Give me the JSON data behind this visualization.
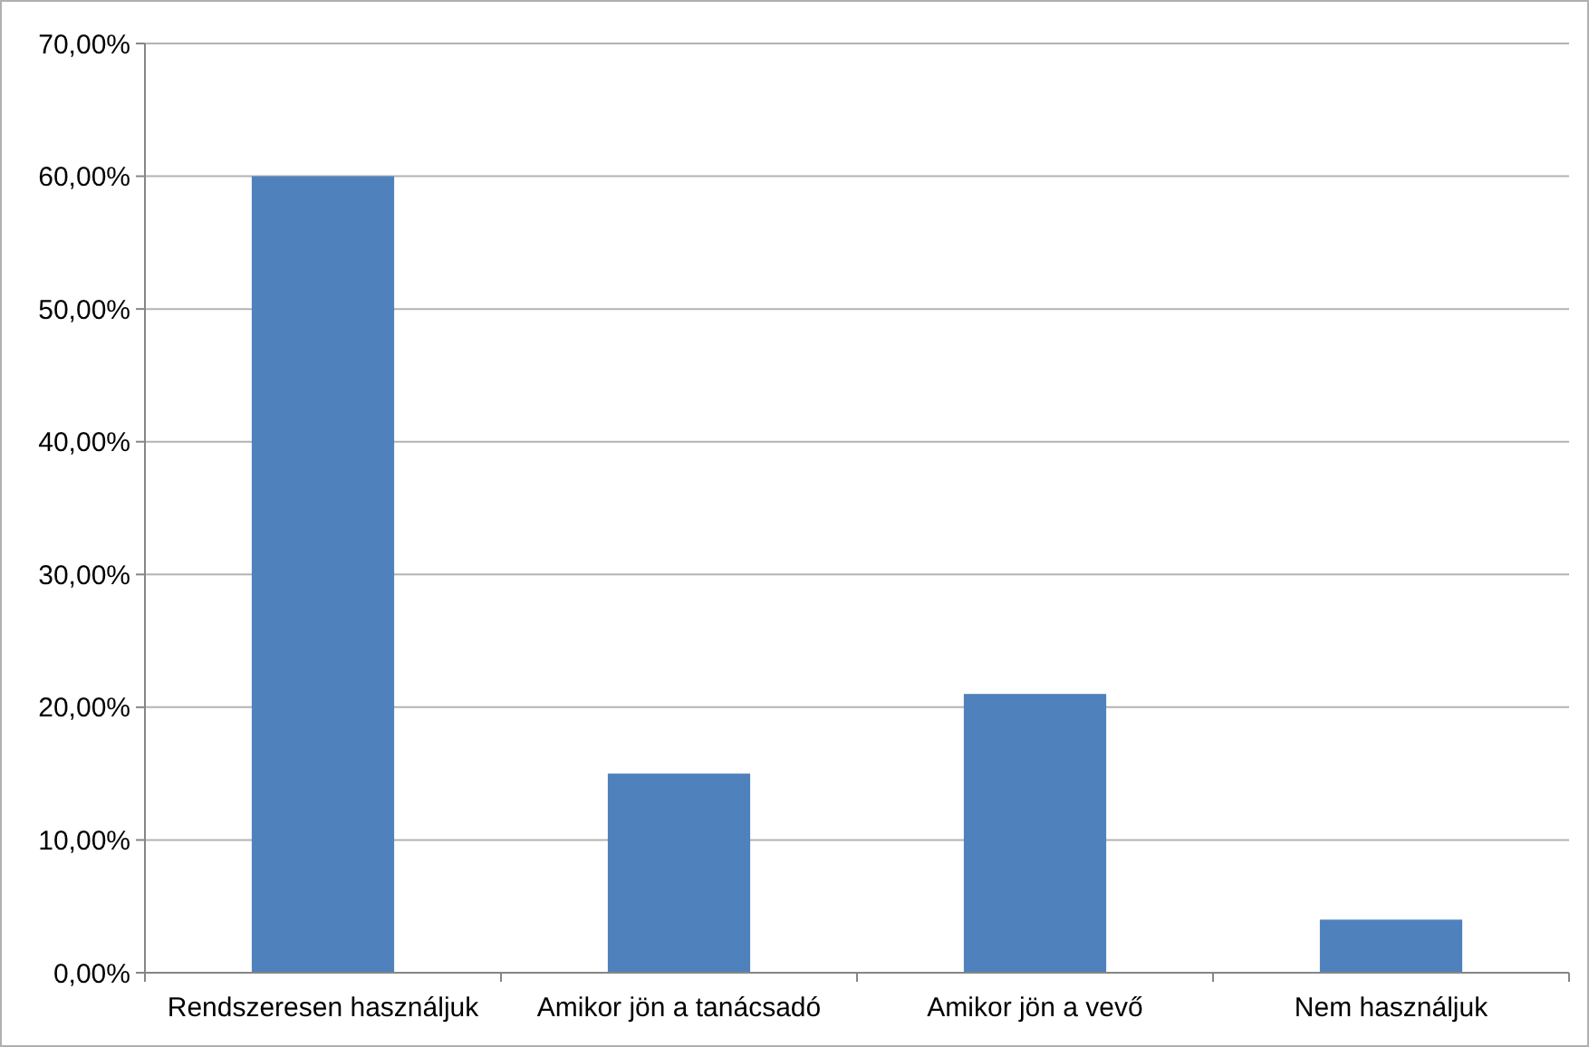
{
  "chart_data": {
    "type": "bar",
    "categories": [
      "Rendszeresen használjuk",
      "Amikor jön a tanácsadó",
      "Amikor jön a vevő",
      "Nem használjuk"
    ],
    "values": [
      60,
      15,
      21,
      4
    ],
    "color": "#4f81bd",
    "ylim": [
      0,
      70
    ],
    "yticks": [
      {
        "value": 0,
        "label": "0,00%"
      },
      {
        "value": 10,
        "label": "10,00%"
      },
      {
        "value": 20,
        "label": "20,00%"
      },
      {
        "value": 30,
        "label": "30,00%"
      },
      {
        "value": 40,
        "label": "40,00%"
      },
      {
        "value": 50,
        "label": "50,00%"
      },
      {
        "value": 60,
        "label": "60,00%"
      },
      {
        "value": 70,
        "label": "70,00%"
      }
    ],
    "grid": "y"
  }
}
